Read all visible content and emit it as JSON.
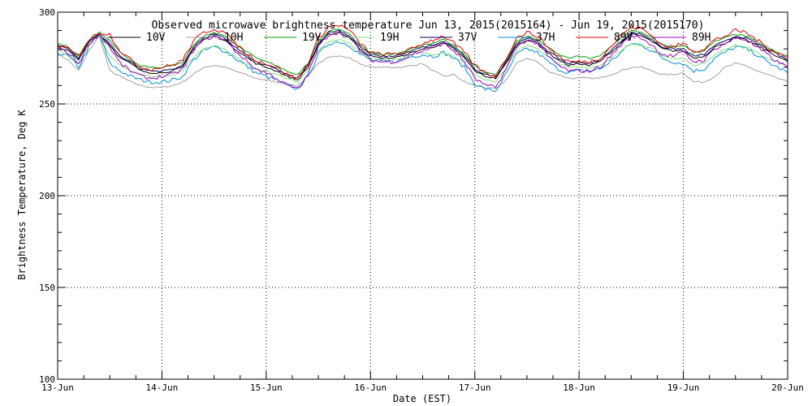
{
  "chart_data": {
    "type": "line",
    "title": "Observed microwave brightness temperature Jun 13, 2015(2015164) - Jun 19, 2015(2015170)",
    "xlabel": "Date (EST)",
    "ylabel": "Brightness Temperature, Deg K",
    "xlim": [
      0,
      7
    ],
    "ylim": [
      100,
      300
    ],
    "grid": true,
    "x_tick_labels": [
      "13-Jun",
      "14-Jun",
      "15-Jun",
      "16-Jun",
      "17-Jun",
      "18-Jun",
      "19-Jun",
      "20-Jun"
    ],
    "y_tick_labels": [
      "100",
      "150",
      "200",
      "250",
      "300"
    ],
    "y_tick_values": [
      100,
      150,
      200,
      250,
      300
    ],
    "x": [
      0.0,
      0.1,
      0.2,
      0.3,
      0.4,
      0.5,
      0.6,
      0.7,
      0.8,
      0.9,
      1.0,
      1.1,
      1.2,
      1.3,
      1.4,
      1.5,
      1.6,
      1.7,
      1.8,
      1.9,
      2.0,
      2.1,
      2.2,
      2.3,
      2.4,
      2.5,
      2.6,
      2.7,
      2.8,
      2.9,
      3.0,
      3.1,
      3.2,
      3.3,
      3.4,
      3.5,
      3.6,
      3.7,
      3.8,
      3.9,
      4.0,
      4.1,
      4.2,
      4.3,
      4.4,
      4.5,
      4.6,
      4.7,
      4.8,
      4.9,
      5.0,
      5.1,
      5.2,
      5.3,
      5.4,
      5.5,
      5.6,
      5.7,
      5.8,
      5.9,
      6.0,
      6.1,
      6.2,
      6.3,
      6.4,
      6.5,
      6.6,
      6.7,
      6.8,
      6.9,
      7.0
    ],
    "series": [
      {
        "name": "10V",
        "color": "#000000",
        "values": [
          281,
          279,
          274,
          284,
          288,
          282,
          275,
          272,
          268,
          267,
          267,
          268,
          270,
          280,
          285,
          287,
          285,
          280,
          276,
          272,
          270,
          268,
          265,
          263,
          270,
          282,
          288,
          289,
          286,
          280,
          276,
          275,
          275,
          276,
          278,
          280,
          281,
          283,
          280,
          275,
          268,
          265,
          264,
          272,
          282,
          285,
          283,
          278,
          274,
          271,
          272,
          271,
          273,
          278,
          283,
          288,
          287,
          284,
          280,
          279,
          279,
          275,
          276,
          281,
          283,
          286,
          285,
          282,
          279,
          276,
          273
        ]
      },
      {
        "name": "10H",
        "color": "#a0a0a0",
        "values": [
          277,
          274,
          268,
          279,
          287,
          268,
          265,
          262,
          260,
          259,
          259,
          260,
          262,
          266,
          270,
          271,
          270,
          268,
          266,
          264,
          263,
          262,
          261,
          260,
          265,
          272,
          276,
          276,
          275,
          272,
          270,
          270,
          270,
          270,
          271,
          272,
          268,
          265,
          266,
          262,
          260,
          259,
          258,
          263,
          272,
          275,
          273,
          268,
          266,
          264,
          264,
          264,
          264,
          266,
          268,
          270,
          270,
          268,
          266,
          266,
          267,
          262,
          262,
          265,
          270,
          272,
          271,
          268,
          266,
          264,
          262
        ]
      },
      {
        "name": "19V",
        "color": "#00a000",
        "values": [
          283,
          281,
          276,
          285,
          289,
          285,
          278,
          274,
          271,
          270,
          270,
          271,
          273,
          282,
          287,
          289,
          287,
          283,
          279,
          275,
          273,
          271,
          268,
          266,
          272,
          284,
          290,
          291,
          288,
          282,
          278,
          277,
          277,
          278,
          280,
          282,
          283,
          285,
          282,
          277,
          271,
          267,
          266,
          274,
          284,
          287,
          285,
          281,
          277,
          275,
          276,
          275,
          276,
          281,
          286,
          290,
          289,
          286,
          282,
          281,
          282,
          278,
          279,
          284,
          286,
          288,
          287,
          284,
          281,
          278,
          276
        ]
      },
      {
        "name": "19H",
        "color": "#80e080",
        "values": [
          279,
          277,
          272,
          282,
          288,
          276,
          271,
          268,
          266,
          265,
          265,
          266,
          268,
          275,
          280,
          282,
          280,
          276,
          272,
          269,
          268,
          266,
          264,
          262,
          268,
          279,
          284,
          285,
          283,
          278,
          275,
          274,
          274,
          275,
          277,
          278,
          277,
          278,
          276,
          272,
          266,
          263,
          262,
          269,
          279,
          282,
          280,
          276,
          272,
          270,
          270,
          270,
          271,
          275,
          279,
          283,
          282,
          280,
          276,
          275,
          275,
          271,
          272,
          277,
          280,
          282,
          281,
          278,
          275,
          273,
          270
        ]
      },
      {
        "name": "37V",
        "color": "#000060",
        "values": [
          282,
          280,
          275,
          284,
          288,
          283,
          276,
          273,
          269,
          268,
          268,
          269,
          271,
          281,
          286,
          288,
          286,
          281,
          277,
          273,
          271,
          269,
          266,
          264,
          271,
          283,
          289,
          290,
          287,
          281,
          277,
          276,
          276,
          277,
          279,
          281,
          282,
          284,
          281,
          276,
          269,
          266,
          265,
          273,
          283,
          286,
          284,
          279,
          275,
          272,
          273,
          272,
          274,
          279,
          284,
          289,
          288,
          285,
          281,
          280,
          280,
          276,
          277,
          282,
          284,
          287,
          286,
          283,
          280,
          277,
          274
        ]
      },
      {
        "name": "37H",
        "color": "#0090d0",
        "values": [
          278,
          276,
          270,
          281,
          288,
          272,
          268,
          265,
          263,
          262,
          262,
          263,
          265,
          274,
          279,
          281,
          279,
          275,
          271,
          267,
          265,
          263,
          260,
          258,
          265,
          277,
          283,
          284,
          282,
          277,
          274,
          273,
          273,
          274,
          276,
          277,
          276,
          278,
          275,
          270,
          261,
          258,
          257,
          266,
          277,
          280,
          278,
          273,
          269,
          267,
          268,
          268,
          269,
          273,
          278,
          283,
          282,
          279,
          275,
          273,
          272,
          268,
          269,
          275,
          278,
          281,
          280,
          277,
          273,
          270,
          267
        ]
      },
      {
        "name": "89V",
        "color": "#e00000",
        "values": [
          282,
          280,
          276,
          285,
          289,
          288,
          279,
          274,
          270,
          269,
          270,
          271,
          274,
          284,
          289,
          291,
          289,
          283,
          278,
          274,
          272,
          270,
          266,
          264,
          272,
          286,
          292,
          293,
          290,
          283,
          278,
          277,
          277,
          278,
          280,
          283,
          285,
          287,
          283,
          278,
          271,
          267,
          265,
          275,
          286,
          289,
          287,
          281,
          276,
          273,
          273,
          273,
          275,
          281,
          287,
          292,
          291,
          287,
          282,
          281,
          283,
          279,
          280,
          285,
          287,
          290,
          289,
          285,
          281,
          278,
          275
        ]
      },
      {
        "name": "89H",
        "color": "#a000c0",
        "values": [
          280,
          278,
          272,
          283,
          288,
          281,
          272,
          268,
          265,
          264,
          265,
          266,
          269,
          279,
          285,
          287,
          285,
          279,
          274,
          269,
          267,
          264,
          260,
          258,
          266,
          281,
          288,
          289,
          286,
          279,
          274,
          273,
          273,
          274,
          277,
          279,
          281,
          283,
          279,
          273,
          264,
          260,
          259,
          269,
          281,
          285,
          283,
          276,
          271,
          268,
          268,
          268,
          270,
          276,
          282,
          287,
          286,
          282,
          277,
          276,
          278,
          273,
          274,
          280,
          283,
          286,
          285,
          281,
          277,
          273,
          270
        ]
      }
    ]
  }
}
